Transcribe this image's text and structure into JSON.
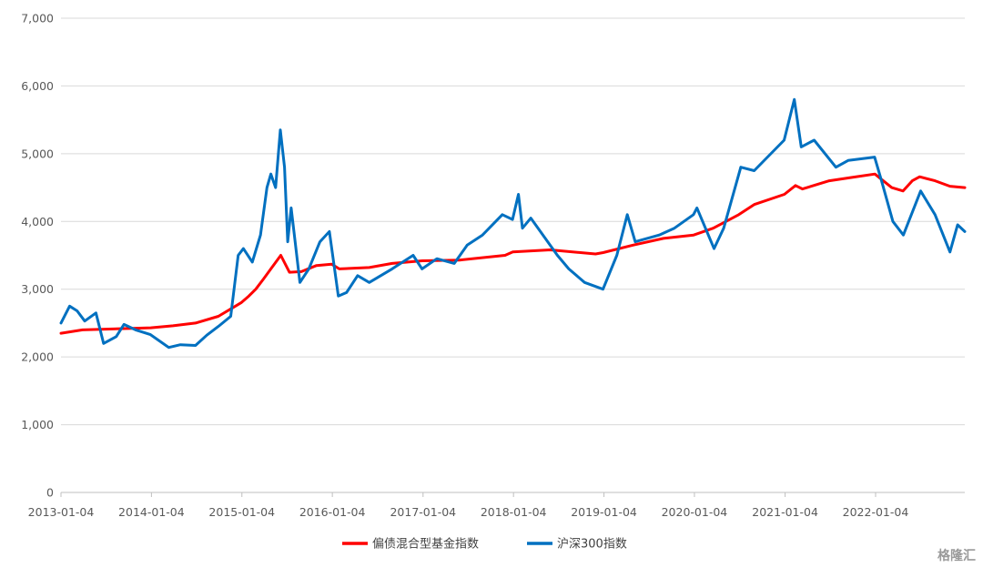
{
  "chart_data": {
    "type": "line",
    "title": "",
    "xlabel": "",
    "ylabel": "",
    "ylim": [
      0,
      7000
    ],
    "yticks": [
      0,
      1000,
      2000,
      3000,
      4000,
      5000,
      6000,
      7000
    ],
    "ytick_labels": [
      "0",
      "1,000",
      "2,000",
      "3,000",
      "4,000",
      "5,000",
      "6,000",
      "7,000"
    ],
    "xlim": [
      "2013-01-04",
      "2022-12-30"
    ],
    "xtick_labels": [
      "2013-01-04",
      "2014-01-04",
      "2015-01-04",
      "2016-01-04",
      "2017-01-04",
      "2018-01-04",
      "2019-01-04",
      "2020-01-04",
      "2021-01-04",
      "2022-01-04"
    ],
    "grid": "horizontal",
    "legend_position": "bottom-center",
    "series": [
      {
        "name": "偏债混合型基金指数",
        "color": "#ff0000",
        "points": [
          [
            "2013-01-04",
            2350
          ],
          [
            "2013-04-01",
            2400
          ],
          [
            "2013-07-01",
            2410
          ],
          [
            "2013-10-01",
            2420
          ],
          [
            "2014-01-01",
            2430
          ],
          [
            "2014-04-01",
            2460
          ],
          [
            "2014-07-01",
            2500
          ],
          [
            "2014-10-01",
            2600
          ],
          [
            "2015-01-01",
            2800
          ],
          [
            "2015-02-01",
            2900
          ],
          [
            "2015-03-01",
            3000
          ],
          [
            "2015-04-01",
            3150
          ],
          [
            "2015-05-01",
            3300
          ],
          [
            "2015-06-10",
            3500
          ],
          [
            "2015-07-15",
            3250
          ],
          [
            "2015-09-01",
            3260
          ],
          [
            "2015-11-01",
            3350
          ],
          [
            "2016-01-01",
            3370
          ],
          [
            "2016-02-01",
            3300
          ],
          [
            "2016-06-01",
            3320
          ],
          [
            "2016-09-01",
            3380
          ],
          [
            "2017-01-01",
            3420
          ],
          [
            "2017-06-01",
            3430
          ],
          [
            "2017-12-01",
            3500
          ],
          [
            "2018-01-01",
            3550
          ],
          [
            "2018-06-01",
            3580
          ],
          [
            "2018-12-01",
            3520
          ],
          [
            "2019-01-01",
            3540
          ],
          [
            "2019-05-01",
            3650
          ],
          [
            "2019-09-01",
            3750
          ],
          [
            "2020-01-01",
            3800
          ],
          [
            "2020-03-20",
            3900
          ],
          [
            "2020-07-01",
            4100
          ],
          [
            "2020-09-01",
            4250
          ],
          [
            "2021-01-01",
            4400
          ],
          [
            "2021-02-15",
            4530
          ],
          [
            "2021-03-15",
            4480
          ],
          [
            "2021-07-01",
            4600
          ],
          [
            "2021-10-01",
            4650
          ],
          [
            "2022-01-01",
            4700
          ],
          [
            "2022-03-10",
            4500
          ],
          [
            "2022-04-25",
            4450
          ],
          [
            "2022-06-01",
            4600
          ],
          [
            "2022-07-01",
            4660
          ],
          [
            "2022-09-01",
            4600
          ],
          [
            "2022-10-31",
            4520
          ],
          [
            "2022-12-30",
            4500
          ]
        ]
      },
      {
        "name": "沪深300指数",
        "color": "#0070c0",
        "points": [
          [
            "2013-01-04",
            2500
          ],
          [
            "2013-02-08",
            2750
          ],
          [
            "2013-03-10",
            2680
          ],
          [
            "2013-04-10",
            2530
          ],
          [
            "2013-05-25",
            2650
          ],
          [
            "2013-06-25",
            2200
          ],
          [
            "2013-08-15",
            2300
          ],
          [
            "2013-09-15",
            2480
          ],
          [
            "2013-11-01",
            2400
          ],
          [
            "2013-12-31",
            2330
          ],
          [
            "2014-03-15",
            2140
          ],
          [
            "2014-05-01",
            2180
          ],
          [
            "2014-07-01",
            2170
          ],
          [
            "2014-08-15",
            2320
          ],
          [
            "2014-10-01",
            2450
          ],
          [
            "2014-11-20",
            2600
          ],
          [
            "2014-12-20",
            3500
          ],
          [
            "2015-01-10",
            3600
          ],
          [
            "2015-02-15",
            3400
          ],
          [
            "2015-03-20",
            3800
          ],
          [
            "2015-04-15",
            4500
          ],
          [
            "2015-05-01",
            4700
          ],
          [
            "2015-05-20",
            4500
          ],
          [
            "2015-06-08",
            5350
          ],
          [
            "2015-06-25",
            4800
          ],
          [
            "2015-07-08",
            3700
          ],
          [
            "2015-07-22",
            4200
          ],
          [
            "2015-08-26",
            3100
          ],
          [
            "2015-10-01",
            3300
          ],
          [
            "2015-11-15",
            3700
          ],
          [
            "2015-12-23",
            3850
          ],
          [
            "2016-01-28",
            2900
          ],
          [
            "2016-03-01",
            2950
          ],
          [
            "2016-04-15",
            3200
          ],
          [
            "2016-06-01",
            3100
          ],
          [
            "2016-09-01",
            3300
          ],
          [
            "2016-11-25",
            3500
          ],
          [
            "2016-12-31",
            3300
          ],
          [
            "2017-03-01",
            3450
          ],
          [
            "2017-05-10",
            3380
          ],
          [
            "2017-07-01",
            3650
          ],
          [
            "2017-09-01",
            3800
          ],
          [
            "2017-11-20",
            4100
          ],
          [
            "2017-12-31",
            4030
          ],
          [
            "2018-01-24",
            4400
          ],
          [
            "2018-02-09",
            3900
          ],
          [
            "2018-03-15",
            4050
          ],
          [
            "2018-06-30",
            3500
          ],
          [
            "2018-08-15",
            3300
          ],
          [
            "2018-10-18",
            3100
          ],
          [
            "2018-12-31",
            3000
          ],
          [
            "2019-02-25",
            3500
          ],
          [
            "2019-04-08",
            4100
          ],
          [
            "2019-05-10",
            3700
          ],
          [
            "2019-08-15",
            3800
          ],
          [
            "2019-10-15",
            3900
          ],
          [
            "2019-12-31",
            4100
          ],
          [
            "2020-01-14",
            4200
          ],
          [
            "2020-03-23",
            3600
          ],
          [
            "2020-05-01",
            3900
          ],
          [
            "2020-07-09",
            4800
          ],
          [
            "2020-09-01",
            4750
          ],
          [
            "2020-12-31",
            5200
          ],
          [
            "2021-02-10",
            5800
          ],
          [
            "2021-03-10",
            5100
          ],
          [
            "2021-05-01",
            5200
          ],
          [
            "2021-07-28",
            4800
          ],
          [
            "2021-09-15",
            4900
          ],
          [
            "2021-12-31",
            4950
          ],
          [
            "2022-01-28",
            4600
          ],
          [
            "2022-03-15",
            4000
          ],
          [
            "2022-04-26",
            3800
          ],
          [
            "2022-07-05",
            4450
          ],
          [
            "2022-09-01",
            4100
          ],
          [
            "2022-10-31",
            3550
          ],
          [
            "2022-12-01",
            3950
          ],
          [
            "2022-12-30",
            3850
          ]
        ]
      }
    ]
  },
  "watermark_text": "格隆汇"
}
